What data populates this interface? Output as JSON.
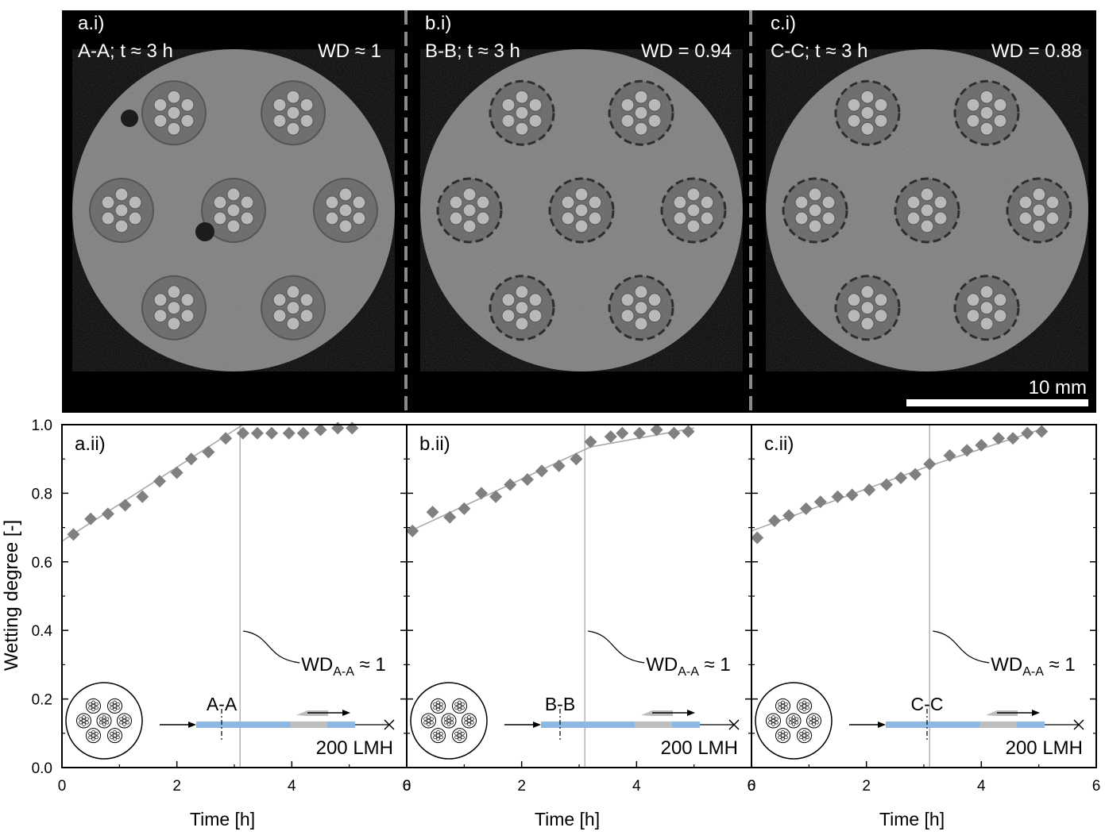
{
  "images": [
    {
      "label": "a.i)",
      "section": "A-A; t ≈ 3 h",
      "wd": "WD ≈ 1"
    },
    {
      "label": "b.i)",
      "section": "B-B; t ≈ 3 h",
      "wd": "WD = 0.94"
    },
    {
      "label": "c.i)",
      "section": "C-C; t ≈ 3 h",
      "wd": "WD = 0.88"
    }
  ],
  "scale_bar": "10 mm",
  "ylabel": "Wetting degree [-]",
  "xlabel": "Time [h]",
  "colors": {
    "marker": "#808080",
    "fit": "#a8a8a8",
    "vline": "#b4b4b4",
    "flow_blue": "#8db8e3",
    "flow_gray": "#bdbdbd"
  },
  "chart_data": [
    {
      "type": "scatter",
      "label": "a.ii)",
      "xlim": [
        0,
        6
      ],
      "ylim": [
        0,
        1.0
      ],
      "xticks": [
        "0",
        "2",
        "4",
        "6"
      ],
      "yticks": [
        "0.0",
        "0.2",
        "0.4",
        "0.6",
        "0.8",
        "1.0"
      ],
      "x": [
        0.2,
        0.5,
        0.8,
        1.1,
        1.4,
        1.7,
        2.0,
        2.25,
        2.55,
        2.85,
        3.15,
        3.4,
        3.65,
        3.95,
        4.2,
        4.5,
        4.8,
        5.05
      ],
      "y": [
        0.68,
        0.725,
        0.74,
        0.765,
        0.79,
        0.835,
        0.86,
        0.9,
        0.92,
        0.96,
        0.975,
        0.975,
        0.975,
        0.975,
        0.975,
        0.985,
        0.99,
        0.99
      ],
      "fit": {
        "x": [
          0,
          3.15
        ],
        "y": [
          0.66,
          1.0
        ]
      },
      "vline_x": 3.1,
      "annotation": {
        "main": "WD",
        "sub": "A-A",
        "tail": " ≈ 1"
      },
      "section": "A-A",
      "flow": "200 LMH"
    },
    {
      "type": "scatter",
      "label": "b.ii)",
      "xlim": [
        0,
        6
      ],
      "ylim": [
        0,
        1.0
      ],
      "xticks": [
        "0",
        "2",
        "4",
        "6"
      ],
      "yticks": [
        "0.0",
        "0.2",
        "0.4",
        "0.6",
        "0.8",
        "1.0"
      ],
      "x": [
        0.1,
        0.45,
        0.75,
        1.0,
        1.3,
        1.55,
        1.8,
        2.1,
        2.35,
        2.65,
        2.95,
        3.2,
        3.55,
        3.75,
        4.05,
        4.35,
        4.65,
        4.9
      ],
      "y": [
        0.69,
        0.745,
        0.73,
        0.755,
        0.8,
        0.79,
        0.825,
        0.84,
        0.865,
        0.88,
        0.9,
        0.95,
        0.965,
        0.975,
        0.975,
        0.985,
        0.975,
        0.98
      ],
      "fit": {
        "x": [
          0,
          3.2,
          5.0
        ],
        "y": [
          0.685,
          0.935,
          0.99
        ]
      },
      "vline_x": 3.1,
      "annotation": {
        "main": "WD",
        "sub": "A-A",
        "tail": " ≈ 1"
      },
      "section": "B-B",
      "flow": "200 LMH"
    },
    {
      "type": "scatter",
      "label": "c.ii)",
      "xlim": [
        0,
        6
      ],
      "ylim": [
        0,
        1.0
      ],
      "xticks": [
        "0",
        "2",
        "4",
        "6"
      ],
      "yticks": [
        "0.0",
        "0.2",
        "0.4",
        "0.6",
        "0.8",
        "1.0"
      ],
      "x": [
        0.1,
        0.4,
        0.65,
        0.95,
        1.2,
        1.5,
        1.75,
        2.05,
        2.35,
        2.6,
        2.85,
        3.1,
        3.45,
        3.75,
        4.0,
        4.3,
        4.55,
        4.8,
        5.05
      ],
      "y": [
        0.67,
        0.72,
        0.735,
        0.755,
        0.775,
        0.79,
        0.795,
        0.81,
        0.825,
        0.845,
        0.855,
        0.885,
        0.91,
        0.925,
        0.94,
        0.96,
        0.96,
        0.975,
        0.98
      ],
      "fit": {
        "x": [
          0,
          3.1,
          5.1
        ],
        "y": [
          0.69,
          0.88,
          0.99
        ]
      },
      "vline_x": 3.1,
      "annotation": {
        "main": "WD",
        "sub": "A-A",
        "tail": " ≈ 1"
      },
      "section": "C-C",
      "flow": "200 LMH"
    }
  ]
}
